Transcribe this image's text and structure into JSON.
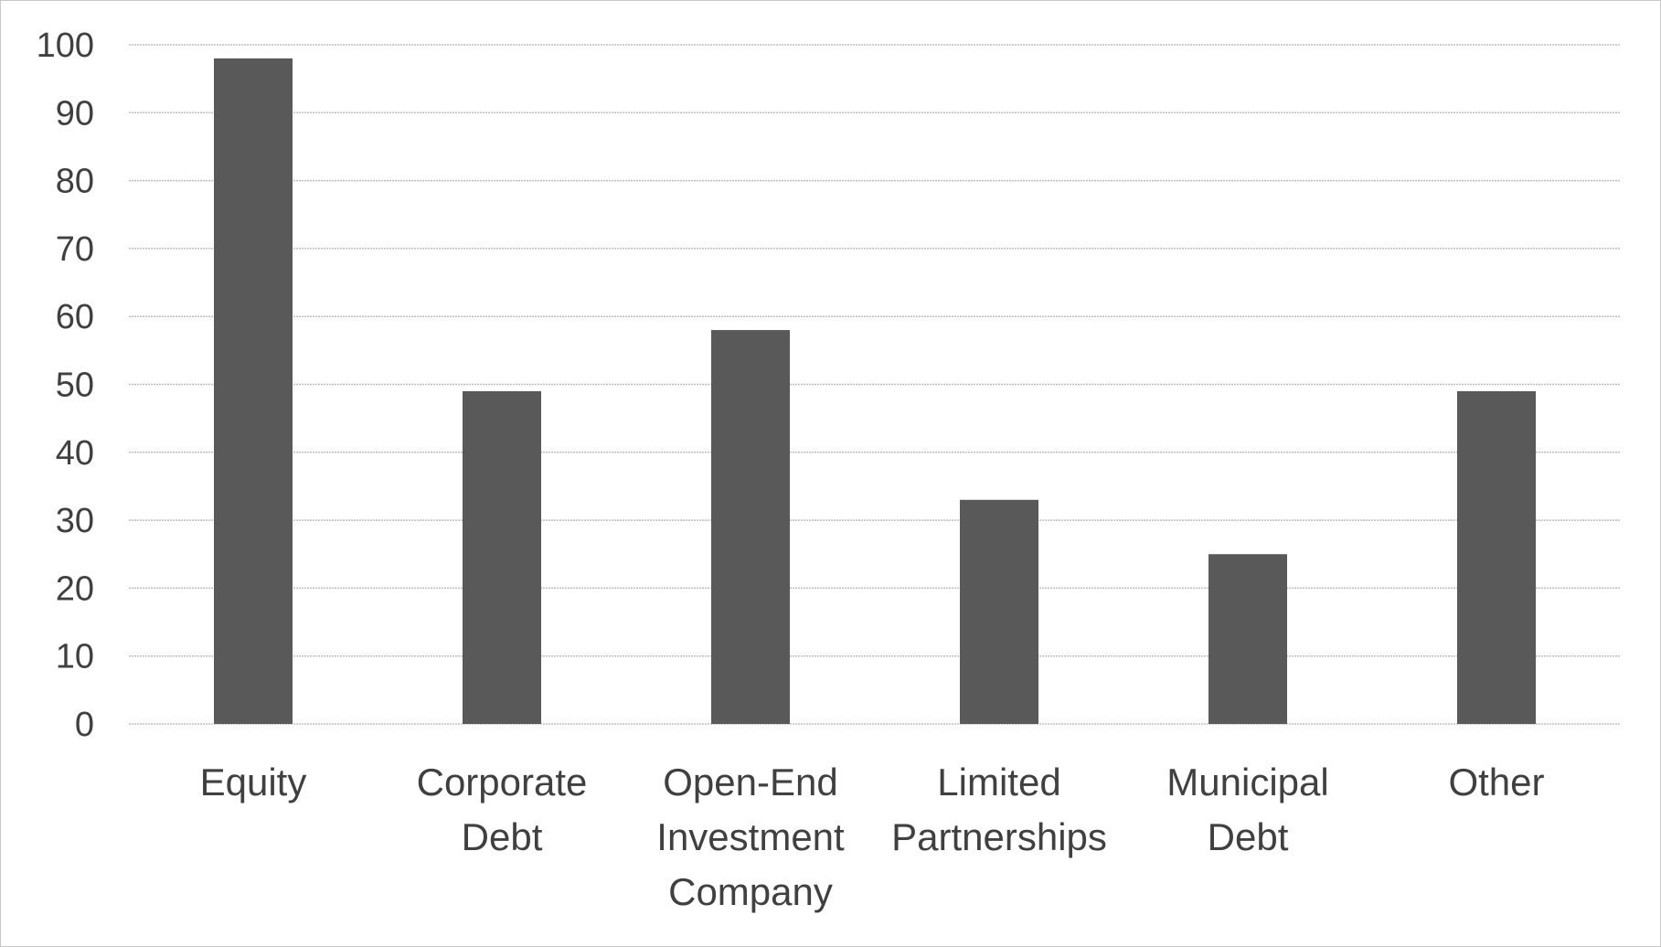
{
  "chart_data": {
    "type": "bar",
    "title": "",
    "xlabel": "",
    "ylabel": "",
    "categories": [
      [
        "Equity"
      ],
      [
        "Corporate",
        "Debt"
      ],
      [
        "Open-End",
        "Investment",
        "Company"
      ],
      [
        "Limited",
        "Partnerships"
      ],
      [
        "Municipal",
        "Debt"
      ],
      [
        "Other"
      ]
    ],
    "values": [
      98,
      49,
      58,
      33,
      25,
      49
    ],
    "ylim": [
      0,
      100
    ],
    "yticks": [
      "0",
      "10",
      "20",
      "30",
      "40",
      "50",
      "60",
      "70",
      "80",
      "90",
      "100"
    ],
    "grid": true,
    "legend": "none",
    "bar_color": "#595959",
    "grid_color": "#bdbdbd",
    "text_color": "#404040"
  }
}
